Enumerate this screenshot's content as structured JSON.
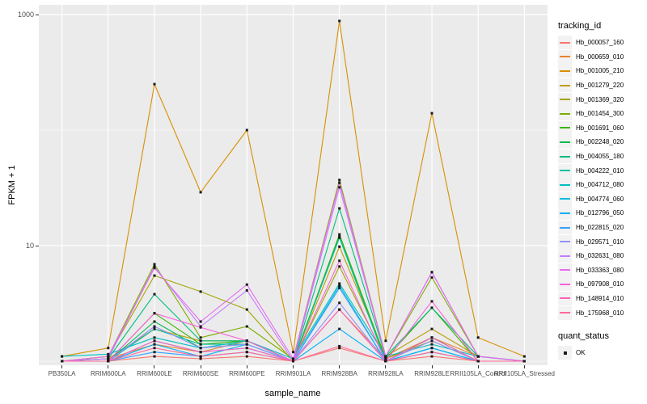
{
  "colors": {
    "panel_bg": "#EBEBEB",
    "grid": "#FFFFFF",
    "tick_text": "#4D4D4D",
    "tick_mark": "#333333",
    "point": "#1A1A1A",
    "legend_key_bg": "#F2F2F2"
  },
  "chart_data": {
    "type": "line",
    "title": "",
    "xlabel": "sample_name",
    "ylabel": "FPKM + 1",
    "y_scale": "log10",
    "y_ticks_labeled": [
      10,
      1000
    ],
    "y_gridlines_minor": [
      1,
      100
    ],
    "ylim": [
      0.92,
      1200
    ],
    "grid": true,
    "legend_position": "right",
    "legend_title": "tracking_id",
    "point_legend": {
      "title": "quant_status",
      "items": [
        {
          "label": "OK",
          "shape": "square",
          "color": "#1A1A1A"
        }
      ]
    },
    "categories": [
      "PB350LA",
      "RRIM600LA",
      "RRIM600LE",
      "RRIM600SE",
      "RRIM600PE",
      "RRIM901LA",
      "RRIM928BA",
      "RRIM928LA",
      "RRIM928LE",
      "RRII105LA_Control",
      "RRII105LA_Stressed"
    ],
    "series": [
      {
        "name": "Hb_000057_160",
        "color": "#F8766D",
        "values": [
          1.0,
          1.0,
          1.1,
          1.05,
          1.1,
          1.0,
          1.3,
          1.0,
          1.1,
          1.0,
          1.0
        ]
      },
      {
        "name": "Hb_000659_010",
        "color": "#EA8331",
        "values": [
          1.0,
          1.05,
          1.4,
          1.2,
          1.5,
          1.0,
          2.8,
          1.05,
          1.6,
          1.1,
          1.0
        ]
      },
      {
        "name": "Hb_001005_210",
        "color": "#D89000",
        "values": [
          1.1,
          1.3,
          250,
          29,
          100,
          1.2,
          880,
          1.5,
          140,
          1.6,
          1.1
        ]
      },
      {
        "name": "Hb_001279_220",
        "color": "#C09B00",
        "values": [
          1.0,
          1.05,
          1.9,
          1.5,
          1.5,
          1.0,
          9.8,
          1.1,
          1.9,
          1.1,
          1.0
        ]
      },
      {
        "name": "Hb_001369_320",
        "color": "#A3A500",
        "values": [
          1.0,
          1.1,
          5.5,
          4.0,
          2.8,
          1.0,
          6.6,
          1.05,
          1.5,
          1.0,
          1.0
        ]
      },
      {
        "name": "Hb_001454_300",
        "color": "#7CAE00",
        "values": [
          1.0,
          1.1,
          6.9,
          1.6,
          2.0,
          1.05,
          37,
          1.1,
          5.3,
          1.1,
          1.0
        ]
      },
      {
        "name": "Hb_001691_060",
        "color": "#39B600",
        "values": [
          1.0,
          1.0,
          2.6,
          1.4,
          1.5,
          1.0,
          12.5,
          1.05,
          2.9,
          1.0,
          1.0
        ]
      },
      {
        "name": "Hb_002248_020",
        "color": "#00BB4E",
        "values": [
          1.0,
          1.0,
          2.2,
          1.3,
          1.4,
          1.0,
          12.0,
          1.0,
          1.6,
          1.0,
          1.0
        ]
      },
      {
        "name": "Hb_004055_180",
        "color": "#00BF7D",
        "values": [
          1.0,
          1.05,
          3.8,
          1.5,
          1.5,
          1.0,
          21,
          1.1,
          2.9,
          1.1,
          1.0
        ]
      },
      {
        "name": "Hb_004222_010",
        "color": "#00C1A3",
        "values": [
          1.0,
          1.0,
          1.9,
          1.4,
          1.4,
          1.0,
          11.7,
          1.0,
          1.6,
          1.0,
          1.0
        ]
      },
      {
        "name": "Hb_004712_080",
        "color": "#00BFC4",
        "values": [
          1.1,
          1.15,
          1.6,
          1.3,
          1.5,
          1.05,
          4.7,
          1.1,
          1.4,
          1.1,
          1.0
        ]
      },
      {
        "name": "Hb_004774_060",
        "color": "#00BAE0",
        "values": [
          1.0,
          1.0,
          1.5,
          1.2,
          1.3,
          1.0,
          4.5,
          1.0,
          1.3,
          1.0,
          1.0
        ]
      },
      {
        "name": "Hb_012796_050",
        "color": "#00B0F6",
        "values": [
          1.0,
          1.0,
          1.4,
          1.1,
          1.4,
          1.0,
          1.9,
          1.0,
          1.3,
          1.0,
          1.0
        ]
      },
      {
        "name": "Hb_022815_020",
        "color": "#35A2FF",
        "values": [
          1.0,
          1.0,
          1.2,
          1.1,
          1.2,
          1.0,
          4.3,
          1.0,
          1.2,
          1.0,
          1.0
        ]
      },
      {
        "name": "Hb_029571_010",
        "color": "#9590FF",
        "values": [
          1.0,
          1.0,
          2.0,
          1.3,
          1.4,
          1.0,
          3.2,
          1.0,
          1.5,
          1.0,
          1.0
        ]
      },
      {
        "name": "Hb_032631_080",
        "color": "#C77CFF",
        "values": [
          1.0,
          1.05,
          6.6,
          2.0,
          4.1,
          1.0,
          32,
          1.1,
          5.9,
          1.1,
          1.0
        ]
      },
      {
        "name": "Hb_033363_080",
        "color": "#E76BF3",
        "values": [
          1.0,
          1.1,
          6.4,
          2.2,
          4.6,
          1.05,
          35,
          1.1,
          5.9,
          1.1,
          1.0
        ]
      },
      {
        "name": "Hb_097908_010",
        "color": "#FA62DB",
        "values": [
          1.0,
          1.0,
          2.6,
          1.96,
          1.5,
          1.0,
          7.4,
          1.0,
          3.3,
          1.0,
          1.0
        ]
      },
      {
        "name": "Hb_148914_010",
        "color": "#FF62BC",
        "values": [
          1.0,
          1.0,
          1.5,
          1.2,
          1.3,
          1.0,
          2.8,
          1.0,
          1.6,
          1.0,
          1.0
        ]
      },
      {
        "name": "Hb_175968_010",
        "color": "#FF6A98",
        "values": [
          1.0,
          1.0,
          1.3,
          1.1,
          1.2,
          1.0,
          1.35,
          1.0,
          1.2,
          1.0,
          1.0
        ]
      }
    ]
  }
}
